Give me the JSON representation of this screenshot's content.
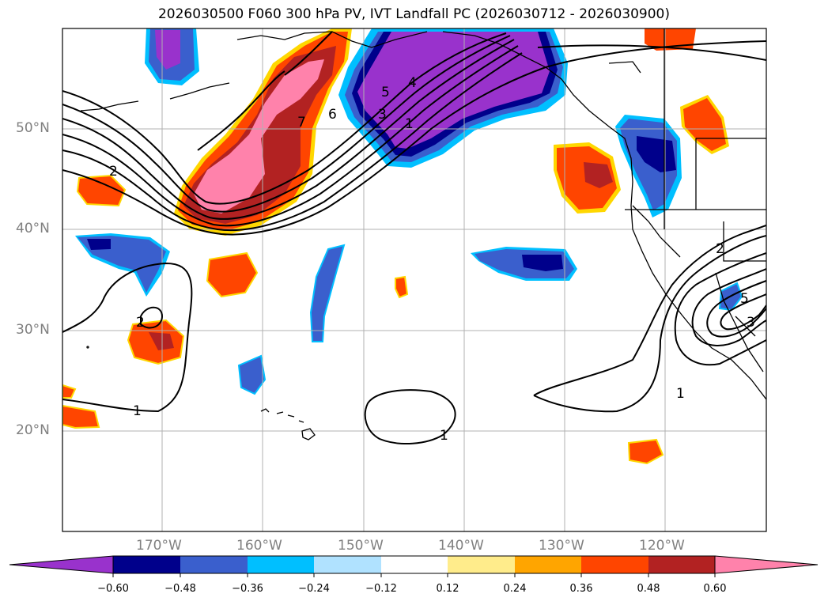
{
  "title": "2026030500 F060 300 hPa PV, IVT Landfall PC (2026030712 - 2026030900)",
  "map": {
    "lat_labels": [
      "50°N",
      "40°N",
      "30°N",
      "20°N"
    ],
    "lon_labels": [
      "170°W",
      "160°W",
      "150°W",
      "140°W",
      "130°W",
      "120°W"
    ],
    "gridline_color": "#b0b0b0",
    "contour_labels": [
      {
        "text": "2",
        "pos": "west-upper"
      },
      {
        "text": "7",
        "pos": "upper"
      },
      {
        "text": "6",
        "pos": "upper"
      },
      {
        "text": "5",
        "pos": "upper"
      },
      {
        "text": "4",
        "pos": "upper"
      },
      {
        "text": "3",
        "pos": "upper"
      },
      {
        "text": "1",
        "pos": "upper"
      },
      {
        "text": "2",
        "pos": "west-middle"
      },
      {
        "text": "1",
        "pos": "west-lower"
      },
      {
        "text": "1",
        "pos": "center-lower"
      },
      {
        "text": "2",
        "pos": "east"
      },
      {
        "text": "5",
        "pos": "east"
      },
      {
        "text": "3",
        "pos": "east"
      },
      {
        "text": "1",
        "pos": "east-lower"
      }
    ]
  },
  "colorbar": {
    "ticks": [
      "−0.60",
      "−0.48",
      "−0.36",
      "−0.24",
      "−0.12",
      "0.12",
      "0.24",
      "0.36",
      "0.48",
      "0.60"
    ],
    "colors": [
      "#9932cc",
      "#00008b",
      "#3a5fcd",
      "#00bfff",
      "#b0e2ff",
      "#ffffff",
      "#ffec8b",
      "#ffa500",
      "#ff4500",
      "#b22222",
      "#ff82ab"
    ]
  }
}
